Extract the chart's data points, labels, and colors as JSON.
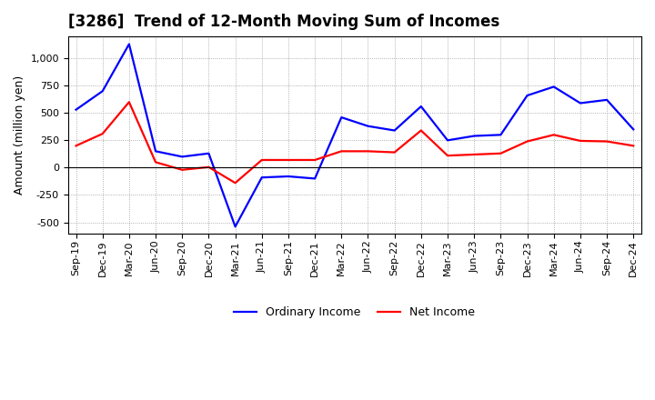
{
  "title": "[3286]  Trend of 12-Month Moving Sum of Incomes",
  "ylabel": "Amount (million yen)",
  "x_labels": [
    "Sep-19",
    "Dec-19",
    "Mar-20",
    "Jun-20",
    "Sep-20",
    "Dec-20",
    "Mar-21",
    "Jun-21",
    "Sep-21",
    "Dec-21",
    "Mar-22",
    "Jun-22",
    "Sep-22",
    "Dec-22",
    "Mar-23",
    "Jun-23",
    "Sep-23",
    "Dec-23",
    "Mar-24",
    "Jun-24",
    "Sep-24",
    "Dec-24"
  ],
  "ordinary_income": [
    530,
    700,
    1130,
    150,
    100,
    130,
    -540,
    -90,
    -80,
    -100,
    460,
    380,
    340,
    560,
    250,
    290,
    300,
    660,
    740,
    590,
    620,
    350
  ],
  "net_income": [
    200,
    310,
    600,
    50,
    -20,
    5,
    -140,
    70,
    70,
    70,
    150,
    150,
    140,
    340,
    110,
    120,
    130,
    240,
    300,
    245,
    240,
    200
  ],
  "ordinary_income_color": "#0000FF",
  "net_income_color": "#FF0000",
  "background_color": "#FFFFFF",
  "plot_bg_color": "#FFFFFF",
  "grid_color": "#999999",
  "ylim": [
    -600,
    1200
  ],
  "yticks": [
    -500,
    -250,
    0,
    250,
    500,
    750,
    1000
  ],
  "legend_labels": [
    "Ordinary Income",
    "Net Income"
  ],
  "title_fontsize": 12,
  "axis_fontsize": 9,
  "tick_fontsize": 8
}
